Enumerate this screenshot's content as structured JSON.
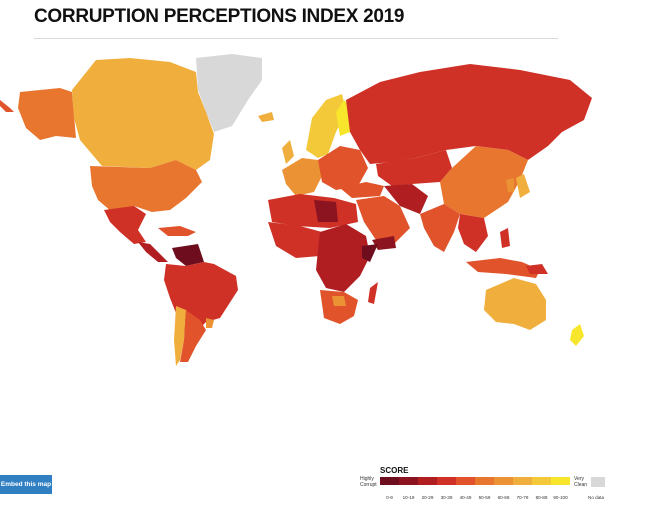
{
  "title": "CORRUPTION PERCEPTIONS INDEX 2019",
  "embed_button": "Embed this map",
  "legend": {
    "title": "SCORE",
    "low_label": "Highly Corrupt",
    "high_label": "Very Clean",
    "no_data_label": "No data",
    "no_data_color": "#d8d8d8",
    "bins": [
      {
        "label": "0-9",
        "color": "#6e0d1d"
      },
      {
        "label": "10-19",
        "color": "#8b1420"
      },
      {
        "label": "20-29",
        "color": "#b01e22"
      },
      {
        "label": "30-39",
        "color": "#cf3127"
      },
      {
        "label": "40-49",
        "color": "#e0532b"
      },
      {
        "label": "50-59",
        "color": "#e8762e"
      },
      {
        "label": "60-69",
        "color": "#eb9234"
      },
      {
        "label": "70-79",
        "color": "#f0ae3c"
      },
      {
        "label": "80-89",
        "color": "#f3c93a"
      },
      {
        "label": "90-100",
        "color": "#f7e62c"
      }
    ]
  },
  "colors": {
    "ocean": "#ffffff",
    "border": "#ffffff",
    "title": "#111111",
    "button": "#2f7fc2"
  }
}
